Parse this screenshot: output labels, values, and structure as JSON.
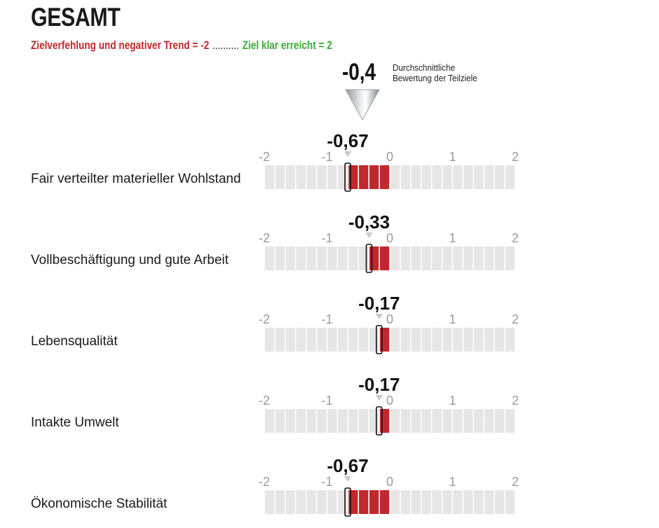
{
  "header": {
    "title": "GESAMT",
    "legend_negative": "Zielverfehlung und negativer Trend = -2",
    "legend_dots": "..........",
    "legend_positive": "Ziel klar erreicht = 2"
  },
  "average": {
    "value_label": "-0,4",
    "value": -0.4,
    "note": "Durchschnittliche\nBewertung der Teilziele"
  },
  "colors": {
    "negative": "#c0282d",
    "positive": "#3aaa35",
    "segment_empty": "#e6e6e6",
    "tick_label": "#9a9a9a"
  },
  "chart_data": {
    "type": "bar",
    "orientation": "horizontal",
    "xlim": [
      -2,
      2
    ],
    "ticks": [
      "-2",
      "-1",
      "0",
      "1",
      "2"
    ],
    "segments_per_unit": 6,
    "categories": [
      "Fair verteilter materieller Wohlstand",
      "Vollbeschäftigung und gute Arbeit",
      "Lebensqualität",
      "Intakte Umwelt",
      "Ökonomische Stabilität"
    ],
    "values": [
      -0.67,
      -0.33,
      -0.17,
      -0.17,
      -0.67
    ],
    "value_labels": [
      "-0,67",
      "-0,33",
      "-0,17",
      "-0,17",
      "-0,67"
    ]
  }
}
